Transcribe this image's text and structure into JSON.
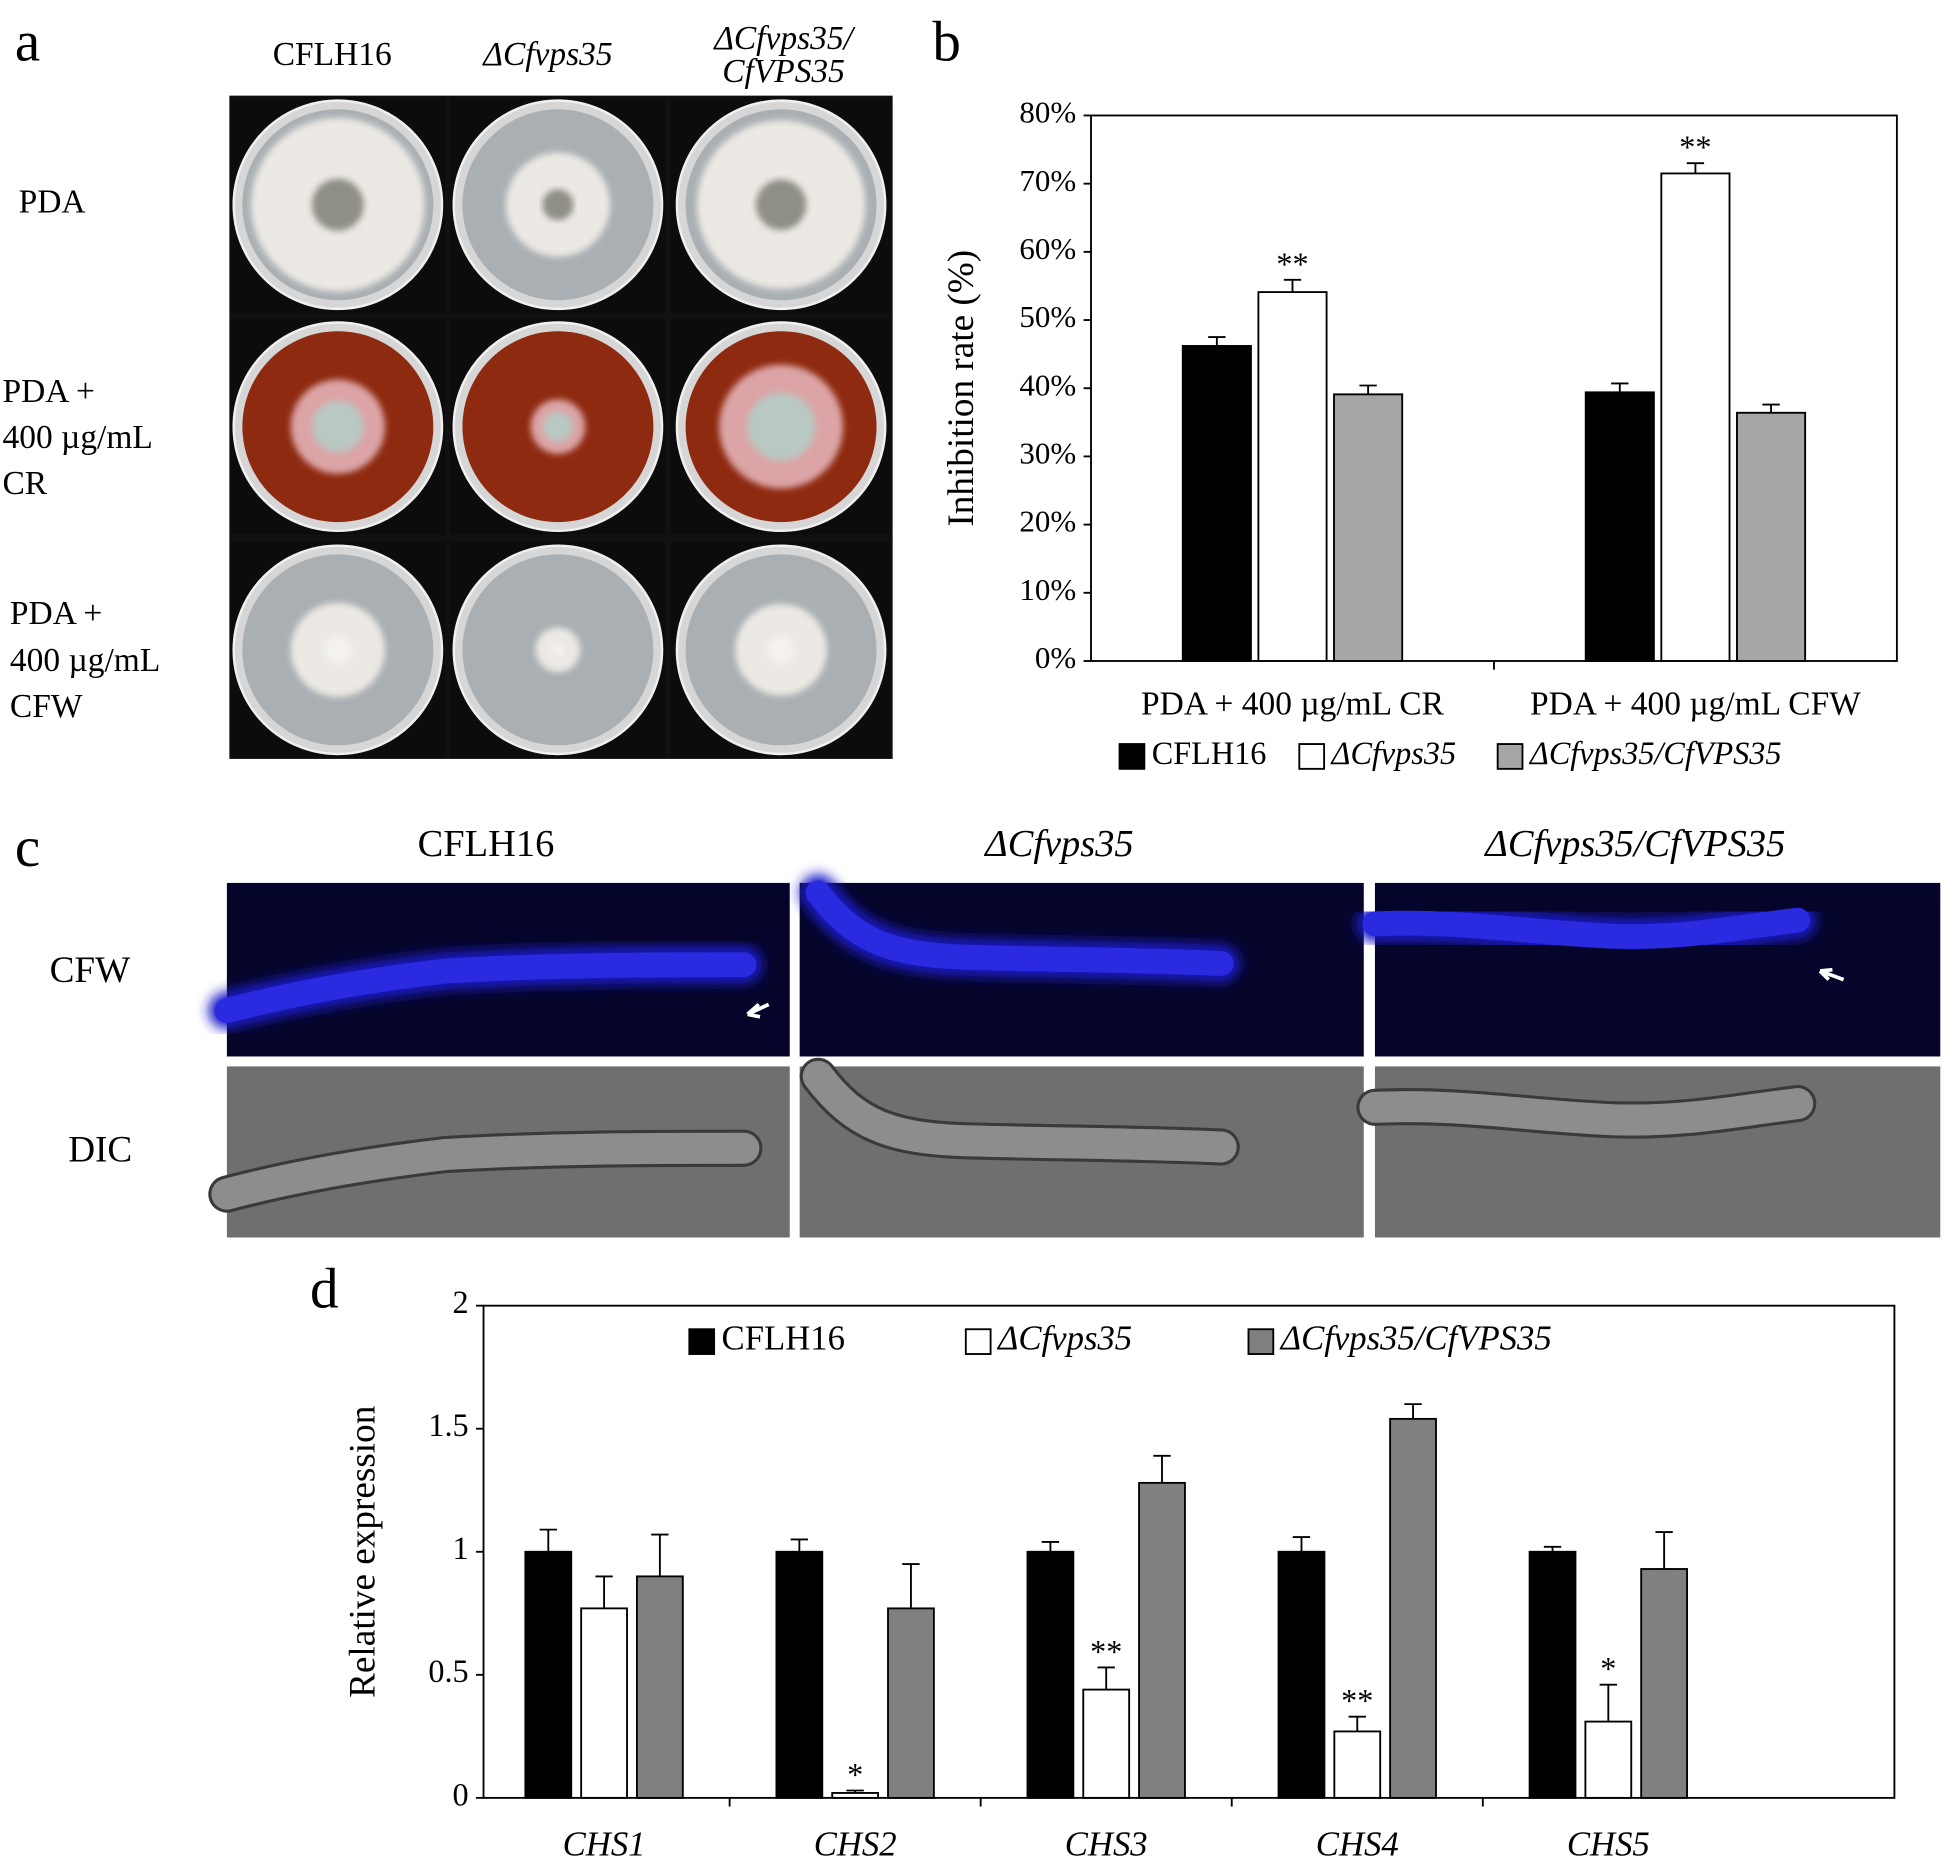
{
  "panel_labels": [
    "a",
    "b",
    "c",
    "d"
  ],
  "panel_a": {
    "columns": [
      [
        "CFLH16"
      ],
      [
        "ΔCfvps35"
      ],
      [
        "ΔCfvps35/",
        "CfVPS35"
      ]
    ],
    "rows": [
      [
        "PDA"
      ],
      [
        "PDA +",
        "400 µg/mL",
        "CR"
      ],
      [
        "PDA +",
        "400 µg/mL",
        "CFW"
      ]
    ]
  },
  "panel_c": {
    "columns": [
      "CFLH16",
      "ΔCfvps35",
      "ΔCfvps35/CfVPS35"
    ],
    "rows": [
      "CFW",
      "DIC"
    ]
  },
  "chart_data": [
    {
      "type": "bar",
      "y_label": "Inhibition rate (%)",
      "categories": [
        "PDA + 400 µg/mL CR",
        "PDA + 400 µg/mL CFW"
      ],
      "series": [
        {
          "name": "CFLH16",
          "color": "#000000",
          "values": [
            46.2,
            39.4
          ],
          "errors": [
            1.3,
            1.3
          ]
        },
        {
          "name": "ΔCfvps35",
          "color": "#ffffff",
          "values": [
            54.1,
            71.5
          ],
          "errors": [
            1.8,
            1.5
          ],
          "significance": [
            "**",
            "**"
          ]
        },
        {
          "name": "ΔCfvps35/CfVPS35",
          "color": "#a6a6a6",
          "values": [
            39.1,
            36.4
          ],
          "errors": [
            1.3,
            1.2
          ]
        }
      ],
      "ylim": [
        0,
        80
      ],
      "yticks": [
        {
          "value": 0,
          "label": "0%"
        },
        {
          "value": 10,
          "label": "10%"
        },
        {
          "value": 20,
          "label": "20%"
        },
        {
          "value": 30,
          "label": "30%"
        },
        {
          "value": 40,
          "label": "40%"
        },
        {
          "value": 50,
          "label": "50%"
        },
        {
          "value": 60,
          "label": "60%"
        },
        {
          "value": 70,
          "label": "70%"
        },
        {
          "value": 80,
          "label": "80%"
        }
      ],
      "legend": "bottom"
    },
    {
      "type": "bar",
      "y_label": "Relative expression",
      "categories": [
        "CHS1",
        "CHS2",
        "CHS3",
        "CHS4",
        "CHS5"
      ],
      "series": [
        {
          "name": "CFLH16",
          "color": "#000000",
          "values": [
            1,
            1,
            1,
            1,
            1
          ],
          "errors": [
            0.09,
            0.05,
            0.04,
            0.06,
            0.02
          ]
        },
        {
          "name": "ΔCfvps35",
          "color": "#ffffff",
          "values": [
            0.77,
            0.02,
            0.44,
            0.27,
            0.31
          ],
          "errors": [
            0.13,
            0.01,
            0.09,
            0.06,
            0.15
          ],
          "significance": [
            null,
            "*",
            "**",
            "**",
            "*"
          ]
        },
        {
          "name": "ΔCfvps35/CfVPS35",
          "color": "#808080",
          "values": [
            0.9,
            0.77,
            1.28,
            1.54,
            0.93
          ],
          "errors": [
            0.17,
            0.18,
            0.11,
            0.06,
            0.15
          ]
        }
      ],
      "ylim": [
        0,
        2
      ],
      "yticks": [
        0,
        0.5,
        1,
        1.5,
        2
      ],
      "legend": "top"
    }
  ]
}
